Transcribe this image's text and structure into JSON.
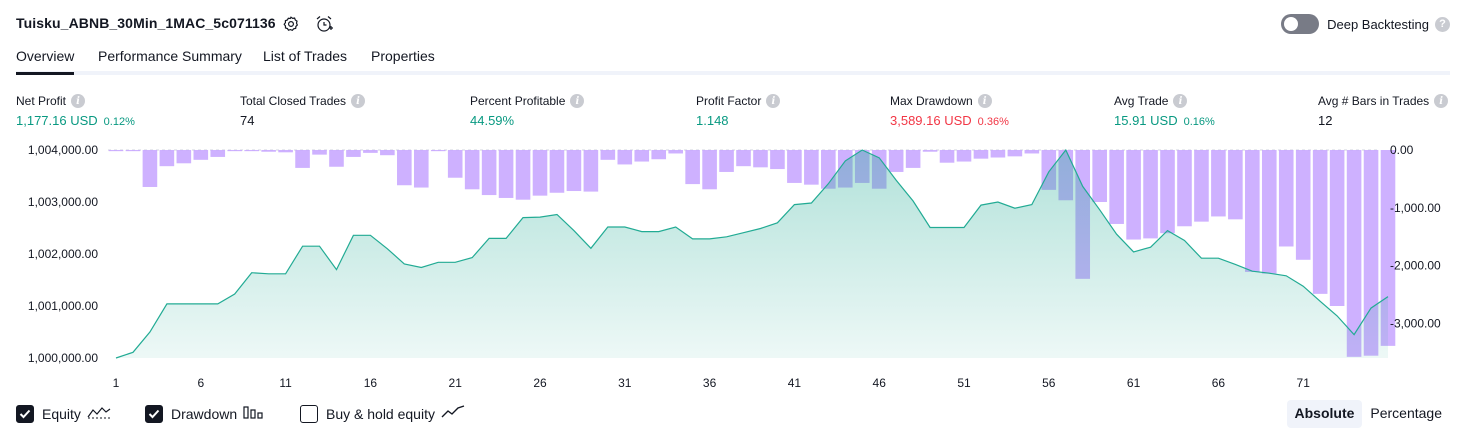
{
  "header": {
    "strategy_name": "Tuisku_ABNB_30Min_1MAC_5c071136",
    "settings_icon": "gear-icon",
    "alert_icon": "alarm-add-icon",
    "deep_backtesting_label": "Deep Backtesting",
    "deep_backtesting_enabled": false,
    "help_mark": "?"
  },
  "tabs": [
    {
      "label": "Overview",
      "active": true
    },
    {
      "label": "Performance Summary",
      "active": false
    },
    {
      "label": "List of Trades",
      "active": false
    },
    {
      "label": "Properties",
      "active": false
    }
  ],
  "metrics": [
    {
      "label": "Net Profit",
      "value": "1,177.16 USD",
      "pct": "0.12%",
      "tone": "pos"
    },
    {
      "label": "Total Closed Trades",
      "value": "74",
      "pct": "",
      "tone": "neu"
    },
    {
      "label": "Percent Profitable",
      "value": "44.59%",
      "pct": "",
      "tone": "pos"
    },
    {
      "label": "Profit Factor",
      "value": "1.148",
      "pct": "",
      "tone": "pos"
    },
    {
      "label": "Max Drawdown",
      "value": "3,589.16 USD",
      "pct": "0.36%",
      "tone": "neg"
    },
    {
      "label": "Avg Trade",
      "value": "15.91 USD",
      "pct": "0.16%",
      "tone": "pos"
    },
    {
      "label": "Avg # Bars in Trades",
      "value": "12",
      "pct": "",
      "tone": "neu"
    }
  ],
  "info_mark": "i",
  "chart_data": {
    "type": "area",
    "equity_axis": {
      "ticks": [
        "1,000,000.00",
        "1,001,000.00",
        "1,002,000.00",
        "1,003,000.00",
        "1,004,000.00"
      ],
      "range": [
        1000000,
        1004000
      ]
    },
    "drawdown_axis": {
      "ticks": [
        "0.00",
        "-1,000.00",
        "-2,000.00",
        "-3,000.00"
      ],
      "range": [
        -3600,
        0
      ]
    },
    "x_ticks": [
      "1",
      "6",
      "11",
      "16",
      "21",
      "26",
      "31",
      "36",
      "41",
      "46",
      "51",
      "56",
      "61",
      "66",
      "71"
    ],
    "series": [
      {
        "name": "Equity",
        "color": "#22ab94",
        "values": [
          1000000,
          1000110,
          1000500,
          1001040,
          1001040,
          1001040,
          1001040,
          1001230,
          1001640,
          1001620,
          1001620,
          1002150,
          1002150,
          1001700,
          1002360,
          1002360,
          1002100,
          1001810,
          1001740,
          1001840,
          1001840,
          1001930,
          1002300,
          1002300,
          1002700,
          1002710,
          1002760,
          1002450,
          1002110,
          1002520,
          1002520,
          1002430,
          1002430,
          1002520,
          1002290,
          1002290,
          1002330,
          1002410,
          1002490,
          1002600,
          1002950,
          1002980,
          1003350,
          1003790,
          1004000,
          1003850,
          1003420,
          1003020,
          1002510,
          1002510,
          1002510,
          1002940,
          1003000,
          1002880,
          1002950,
          1003580,
          1004000,
          1003300,
          1002850,
          1002380,
          1002040,
          1002130,
          1002450,
          1002260,
          1001920,
          1001920,
          1001800,
          1001670,
          1001630,
          1001580,
          1001380,
          1001090,
          1000810,
          1000450,
          1000960,
          1001180
        ]
      },
      {
        "name": "Drawdown",
        "color": "#c5a3ff",
        "values": [
          -20,
          -20,
          -640,
          -280,
          -230,
          -170,
          -120,
          -20,
          -20,
          -30,
          -40,
          -310,
          -80,
          -290,
          -120,
          -50,
          -90,
          -610,
          -650,
          -20,
          -480,
          -680,
          -780,
          -830,
          -860,
          -790,
          -740,
          -710,
          -720,
          -170,
          -250,
          -200,
          -160,
          -60,
          -590,
          -680,
          -380,
          -280,
          -300,
          -330,
          -570,
          -600,
          -670,
          -650,
          -570,
          -670,
          -380,
          -310,
          -30,
          -220,
          -200,
          -150,
          -130,
          -110,
          -60,
          -690,
          -870,
          -2230,
          -900,
          -1280,
          -1550,
          -1530,
          -1440,
          -1320,
          -1240,
          -1150,
          -1200,
          -2110,
          -2140,
          -1670,
          -1900,
          -2490,
          -2700,
          -3580,
          -3560,
          -3390
        ]
      }
    ],
    "buy_hold_shown": false
  },
  "legend": {
    "items": [
      {
        "label": "Equity",
        "checked": true
      },
      {
        "label": "Drawdown",
        "checked": true
      },
      {
        "label": "Buy & hold equity",
        "checked": false
      }
    ]
  },
  "scale_toggle": {
    "options": [
      "Absolute",
      "Percentage"
    ],
    "selected": "Absolute"
  }
}
